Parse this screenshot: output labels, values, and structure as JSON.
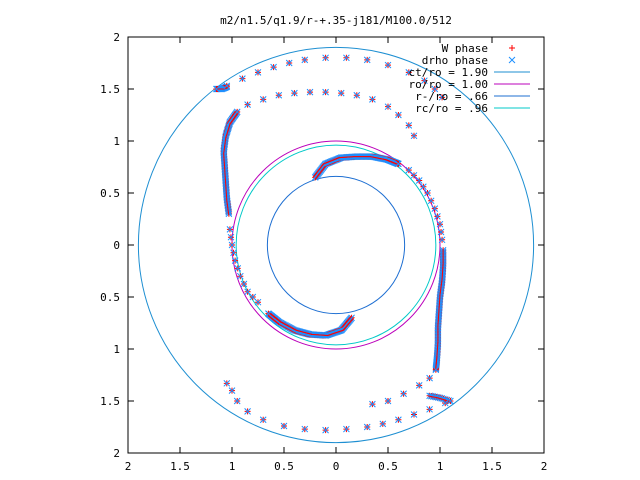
{
  "chart_data": {
    "type": "scatter",
    "title": "m2/n1.5/q1.9/r-+.35-j181/M100.0/512",
    "xlabel": "",
    "ylabel": "",
    "xlim": [
      -2,
      2
    ],
    "ylim": [
      -2,
      2
    ],
    "x_tick_labels": [
      "2",
      "1.5",
      "1",
      "0.5",
      "0",
      "0.5",
      "1",
      "1.5",
      "2"
    ],
    "y_tick_labels": [
      "2",
      "1.5",
      "1",
      "0.5",
      "0",
      "0.5",
      "1",
      "1.5",
      "2"
    ],
    "grid": false,
    "legend_position": "top-right",
    "series": [
      {
        "name": "W phase",
        "kind": "points",
        "marker": "+",
        "color": "#ff0000"
      },
      {
        "name": "drho phase",
        "kind": "points",
        "marker": "x",
        "color": "#1e90ff"
      },
      {
        "name": "ct/ro = 1.90",
        "kind": "circle",
        "radius": 1.9,
        "color": "#1e8fd2"
      },
      {
        "name": "ro/ro = 1.00",
        "kind": "circle",
        "radius": 1.0,
        "color": "#bb00bb"
      },
      {
        "name": "r-/ro = .66",
        "kind": "circle",
        "radius": 0.66,
        "color": "#1e6fd2"
      },
      {
        "name": "rc/ro = .96",
        "kind": "circle",
        "radius": 0.96,
        "color": "#00c8c8"
      }
    ],
    "arms": [
      {
        "dense": [
          [
            -0.2,
            0.65
          ],
          [
            -0.1,
            0.78
          ],
          [
            0.05,
            0.84
          ],
          [
            0.2,
            0.85
          ],
          [
            0.35,
            0.85
          ],
          [
            0.5,
            0.82
          ],
          [
            0.6,
            0.78
          ]
        ],
        "sparse": [
          [
            0.7,
            0.72
          ],
          [
            0.8,
            0.62
          ],
          [
            0.88,
            0.5
          ],
          [
            0.95,
            0.35
          ],
          [
            1.0,
            0.2
          ],
          [
            1.02,
            0.05
          ]
        ],
        "dense2": [
          [
            1.03,
            -0.05
          ],
          [
            1.03,
            -0.2
          ],
          [
            1.02,
            -0.35
          ],
          [
            1.0,
            -0.5
          ],
          [
            0.99,
            -0.65
          ],
          [
            0.98,
            -0.8
          ],
          [
            0.98,
            -0.95
          ],
          [
            0.97,
            -1.1
          ],
          [
            0.96,
            -1.2
          ]
        ],
        "sparse2": [
          [
            0.9,
            -1.28
          ],
          [
            0.8,
            -1.35
          ],
          [
            0.65,
            -1.43
          ],
          [
            0.5,
            -1.5
          ],
          [
            0.35,
            -1.53
          ]
        ],
        "end": [
          [
            0.9,
            -1.45
          ],
          [
            1.0,
            -1.47
          ],
          [
            1.1,
            -1.5
          ]
        ],
        "outer": [
          [
            1.05,
            -1.52
          ],
          [
            0.9,
            -1.58
          ],
          [
            0.75,
            -1.63
          ],
          [
            0.6,
            -1.68
          ],
          [
            0.45,
            -1.72
          ],
          [
            0.3,
            -1.75
          ],
          [
            0.1,
            -1.77
          ],
          [
            -0.1,
            -1.78
          ],
          [
            -0.3,
            -1.77
          ],
          [
            -0.5,
            -1.74
          ],
          [
            -0.7,
            -1.68
          ],
          [
            -0.85,
            -1.6
          ],
          [
            -0.95,
            -1.5
          ],
          [
            -1.0,
            -1.4
          ],
          [
            -1.05,
            -1.33
          ]
        ]
      },
      {
        "dense": [
          [
            0.15,
            -0.7
          ],
          [
            0.05,
            -0.82
          ],
          [
            -0.1,
            -0.87
          ],
          [
            -0.25,
            -0.86
          ],
          [
            -0.4,
            -0.82
          ],
          [
            -0.55,
            -0.74
          ],
          [
            -0.65,
            -0.66
          ]
        ],
        "sparse": [
          [
            -0.75,
            -0.55
          ],
          [
            -0.85,
            -0.45
          ],
          [
            -0.92,
            -0.3
          ],
          [
            -0.97,
            -0.15
          ],
          [
            -1.0,
            0.0
          ],
          [
            -1.02,
            0.15
          ]
        ],
        "dense2": [
          [
            -1.03,
            0.3
          ],
          [
            -1.05,
            0.45
          ],
          [
            -1.06,
            0.6
          ],
          [
            -1.07,
            0.75
          ],
          [
            -1.08,
            0.9
          ],
          [
            -1.06,
            1.05
          ],
          [
            -1.02,
            1.18
          ],
          [
            -0.95,
            1.28
          ]
        ],
        "sparse2": [
          [
            -0.85,
            1.35
          ],
          [
            -0.7,
            1.4
          ],
          [
            -0.55,
            1.44
          ],
          [
            -0.4,
            1.46
          ],
          [
            -0.25,
            1.47
          ],
          [
            -0.1,
            1.47
          ],
          [
            0.05,
            1.46
          ],
          [
            0.2,
            1.44
          ],
          [
            0.35,
            1.4
          ],
          [
            0.5,
            1.33
          ],
          [
            0.6,
            1.25
          ],
          [
            0.7,
            1.15
          ],
          [
            0.75,
            1.05
          ]
        ],
        "end": [
          [
            -1.05,
            1.52
          ],
          [
            -1.1,
            1.5
          ],
          [
            -1.15,
            1.5
          ]
        ],
        "outer": [
          [
            -1.05,
            1.53
          ],
          [
            -0.9,
            1.6
          ],
          [
            -0.75,
            1.66
          ],
          [
            -0.6,
            1.71
          ],
          [
            -0.45,
            1.75
          ],
          [
            -0.3,
            1.78
          ],
          [
            -0.1,
            1.8
          ],
          [
            0.1,
            1.8
          ],
          [
            0.3,
            1.78
          ],
          [
            0.5,
            1.73
          ],
          [
            0.7,
            1.66
          ],
          [
            0.85,
            1.58
          ],
          [
            0.95,
            1.5
          ],
          [
            1.02,
            1.42
          ]
        ]
      }
    ]
  }
}
